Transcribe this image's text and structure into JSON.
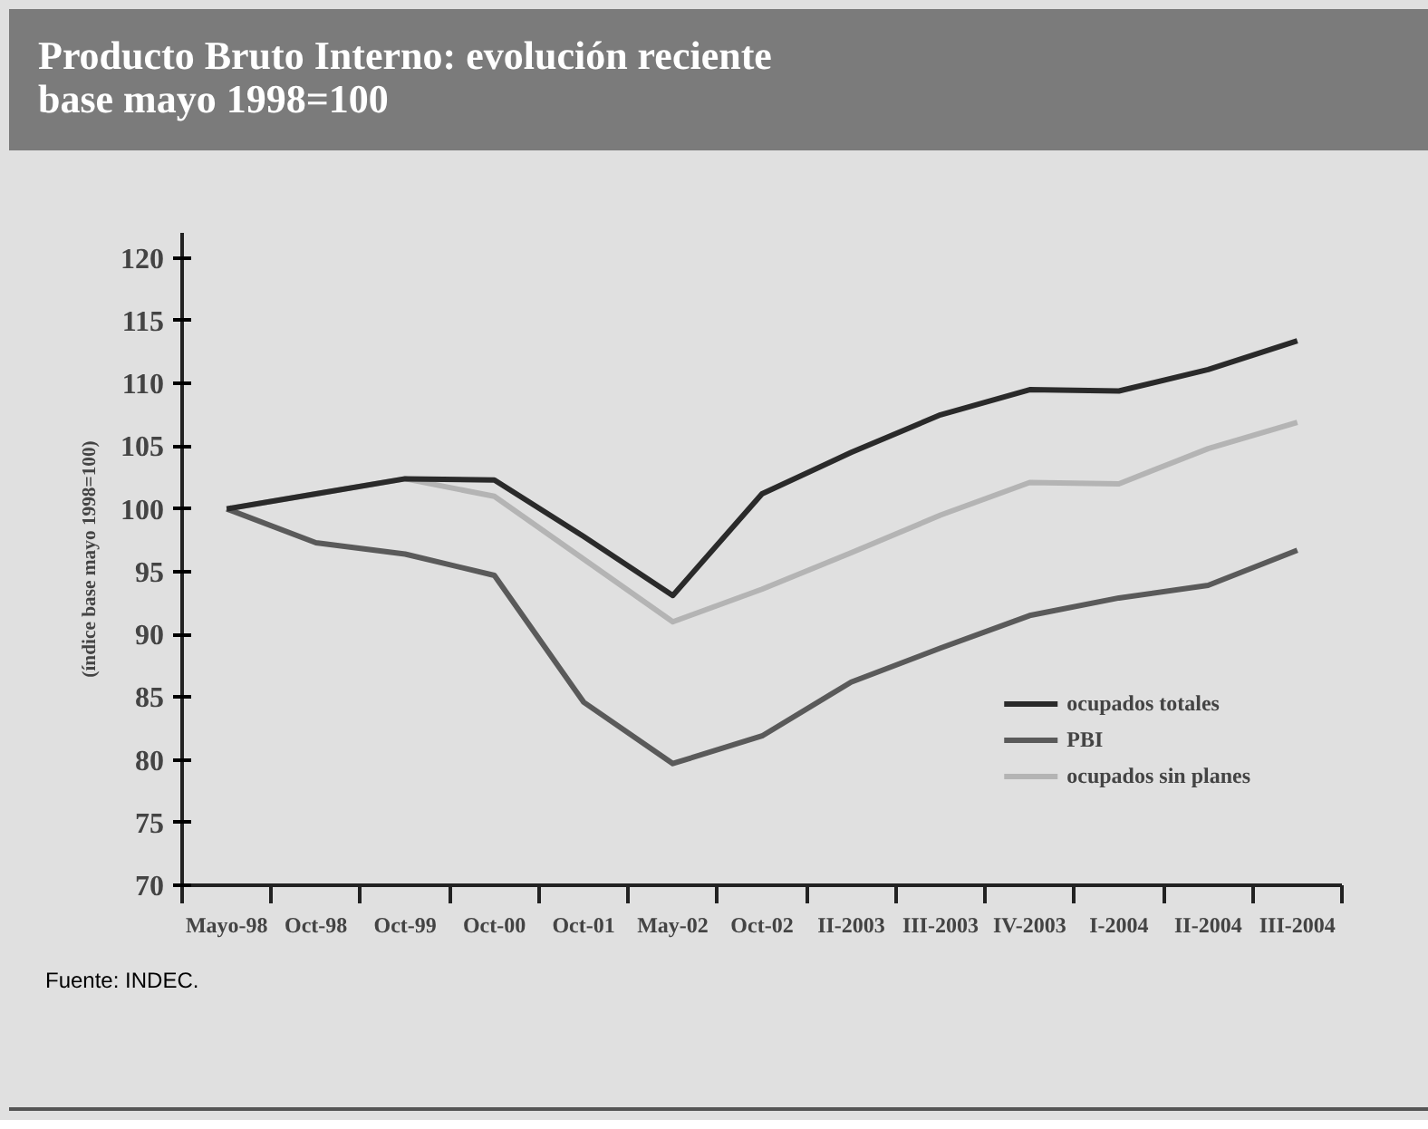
{
  "chart_data": {
    "type": "line",
    "title": "Producto Bruto Interno: evolución reciente",
    "subtitle": "base mayo 1998=100",
    "ylabel": "(índice base mayo 1998=100)",
    "annotations": [
      "Fuente: INDEC."
    ],
    "categories": [
      "Mayo-98",
      "Oct-98",
      "Oct-99",
      "Oct-00",
      "Oct-01",
      "May-02",
      "Oct-02",
      "II-2003",
      "III-2003",
      "IV-2003",
      "I-2004",
      "II-2004",
      "III-2004"
    ],
    "series": [
      {
        "name": "ocupados totales",
        "color": "#2a2a2a",
        "values": [
          100,
          101.2,
          102.4,
          102.3,
          97.8,
          93.1,
          101.2,
          104.5,
          107.5,
          109.5,
          109.4,
          111.1,
          113.4
        ]
      },
      {
        "name": "PBI",
        "color": "#5a5a5a",
        "values": [
          100,
          97.3,
          96.4,
          94.7,
          84.6,
          79.7,
          81.9,
          86.2,
          88.9,
          91.5,
          92.9,
          93.9,
          96.7
        ]
      },
      {
        "name": "ocupados sin planes",
        "color": "#b4b4b4",
        "values": [
          100,
          101.2,
          102.4,
          101.0,
          96.0,
          91.0,
          93.6,
          96.5,
          99.5,
          102.1,
          102.0,
          104.8,
          106.9
        ]
      }
    ],
    "ylim": [
      70,
      122
    ],
    "yticks": [
      70,
      75,
      80,
      85,
      90,
      95,
      100,
      105,
      110,
      115,
      120
    ],
    "legend": "bottom right",
    "marker": "none",
    "line_style": "solid"
  }
}
